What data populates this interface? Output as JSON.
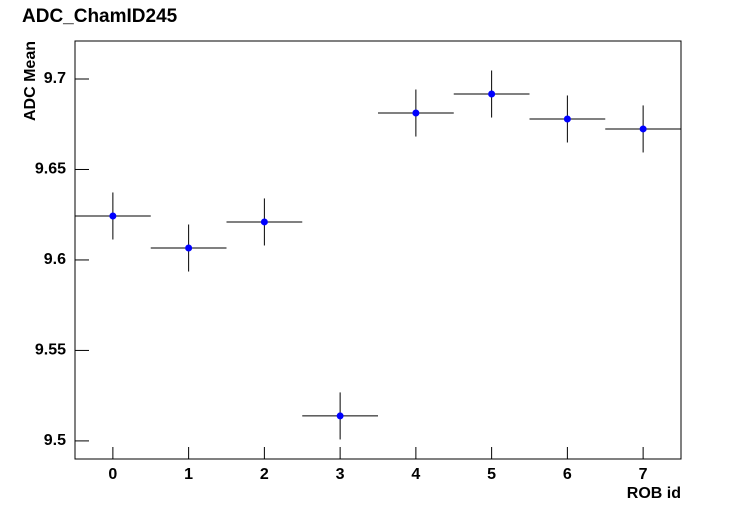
{
  "chart_data": {
    "type": "errorbar",
    "title": "ADC_ChamID245",
    "x_label": "ROB id",
    "y_label": "ADC Mean",
    "x": [
      0,
      1,
      2,
      3,
      4,
      5,
      6,
      7
    ],
    "series": [
      {
        "color": "#0000ff",
        "values": [
          9.6243,
          9.6066,
          9.621,
          9.5138,
          9.6812,
          9.6917,
          9.6779,
          9.6724
        ],
        "yerr": [
          0.013,
          0.013,
          0.013,
          0.013,
          0.013,
          0.013,
          0.013,
          0.013
        ],
        "xerr": [
          0.5,
          0.5,
          0.5,
          0.5,
          0.5,
          0.5,
          0.5,
          0.5
        ]
      }
    ],
    "xlim": [
      -0.5,
      7.5
    ],
    "ylim": [
      9.49,
      9.721
    ],
    "xticks": [
      0,
      1,
      2,
      3,
      4,
      5,
      6,
      7
    ],
    "yticks": [
      9.5,
      9.55,
      9.6,
      9.65,
      9.7
    ]
  }
}
